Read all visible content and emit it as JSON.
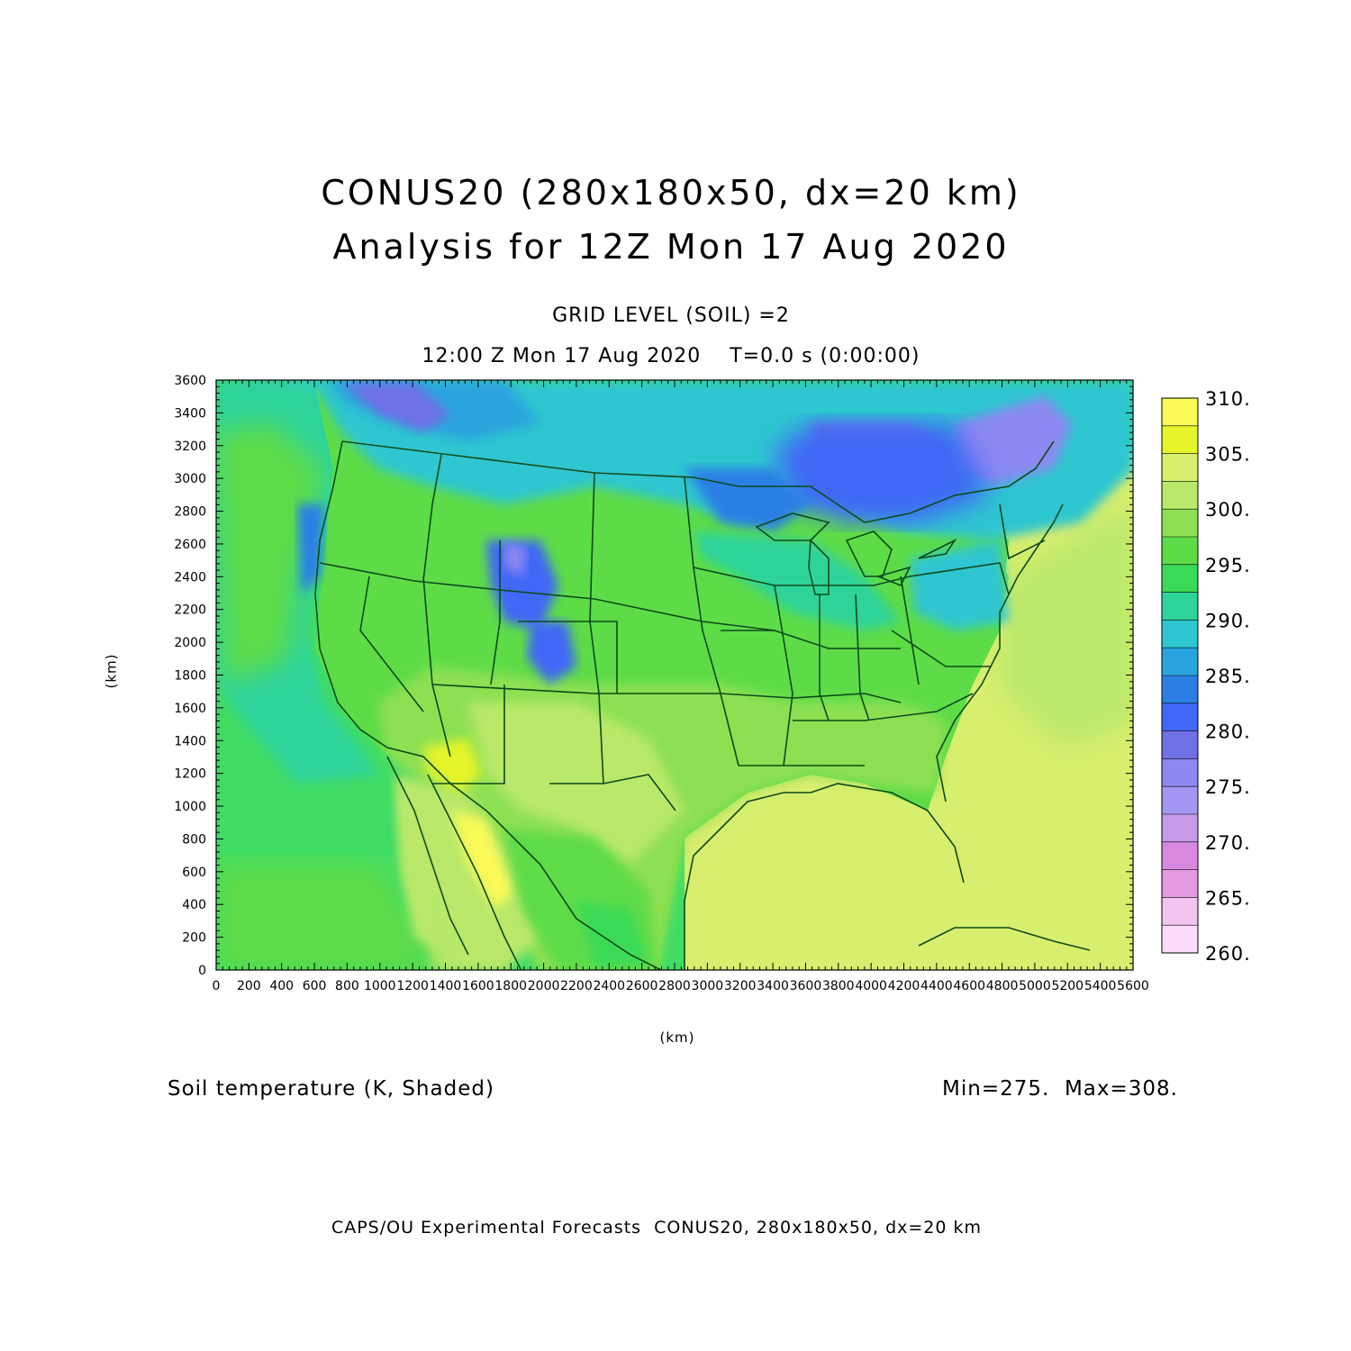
{
  "title": {
    "line1": "CONUS20 (280x180x50, dx=20 km)",
    "line2": "Analysis for 12Z Mon 17 Aug 2020"
  },
  "subtitle": {
    "level": "GRID LEVEL (SOIL) =2",
    "time": "12:00 Z Mon 17 Aug 2020    T=0.0 s (0:00:00)"
  },
  "axes": {
    "x_unit": "(km)",
    "y_unit": "(km)",
    "x_ticks": [
      "0",
      "200",
      "400",
      "600",
      "800",
      "1000",
      "1200",
      "1400",
      "1600",
      "1800",
      "2000",
      "2200",
      "2400",
      "2600",
      "2800",
      "3000",
      "3200",
      "3400",
      "3600",
      "3800",
      "4000",
      "4200",
      "4400",
      "4600",
      "4800",
      "5000",
      "5200",
      "5400",
      "5600"
    ],
    "y_ticks": [
      "0",
      "200",
      "400",
      "600",
      "800",
      "1000",
      "1200",
      "1400",
      "1600",
      "1800",
      "2000",
      "2200",
      "2400",
      "2600",
      "2800",
      "3000",
      "3200",
      "3400",
      "3600"
    ],
    "x_range": [
      0,
      5600
    ],
    "y_range": [
      0,
      3600
    ]
  },
  "colorbar": {
    "labels": [
      "310.",
      "305.",
      "300.",
      "295.",
      "290.",
      "285.",
      "280.",
      "275.",
      "270.",
      "265.",
      "260."
    ],
    "colors": [
      "#fafa58",
      "#e6f52a",
      "#d8ee6e",
      "#b9e86a",
      "#8ee052",
      "#5edc48",
      "#3ada56",
      "#2ed39a",
      "#2ec6d0",
      "#2aa4de",
      "#2b7fe4",
      "#3f68f6",
      "#7070e6",
      "#8d88f2",
      "#a497f4",
      "#c59ae8",
      "#d98ae0",
      "#e59ae2",
      "#f2c4ef",
      "#fbdcfb"
    ]
  },
  "field": {
    "description": "Soil temperature (K, Shaded)",
    "minmax": "Min=275.  Max=308."
  },
  "footer": "CAPS/OU Experimental Forecasts  CONUS20, 280x180x50, dx=20 km",
  "map_colors": {
    "ocean_pacific": "#41dc64",
    "ocean_atlantic": "#d8ee6e",
    "warm_sw": "#b9e86a",
    "hot": "#fafa58",
    "cool_north": "#2ec6d0",
    "cold": "#7070e6",
    "border": "#0d4a1a"
  }
}
